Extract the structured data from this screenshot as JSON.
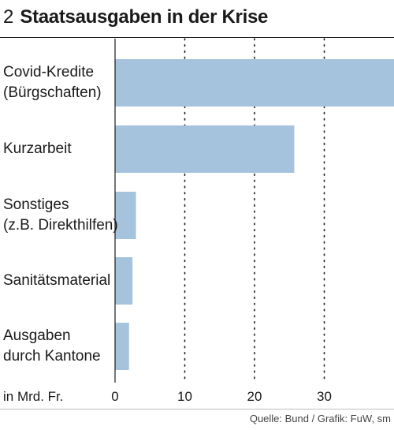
{
  "figure_number": "2",
  "title": "Staatsausgaben in der Krise",
  "source": "Quelle: Bund / Grafik: FuW, sm",
  "colors": {
    "bar": "#a5c3dd",
    "axis": "#1a1a1a",
    "grid": "#1a1a1a"
  },
  "chart_data": {
    "type": "bar",
    "orientation": "horizontal",
    "categories": [
      [
        "Covid-Kredite",
        "(Bürgschaften)"
      ],
      [
        "Kurzarbeit"
      ],
      [
        "Sonstiges",
        "(z.B. Direkthilfen)"
      ],
      [
        "Sanitätsmaterial"
      ],
      [
        "Ausgaben",
        "durch Kantone"
      ]
    ],
    "values": [
      40,
      25.7,
      3.0,
      2.5,
      2.0
    ],
    "unit_label": "in Mrd. Fr.",
    "xticks": [
      0,
      10,
      20,
      30
    ],
    "xlim": [
      0,
      40
    ],
    "grid": true
  }
}
